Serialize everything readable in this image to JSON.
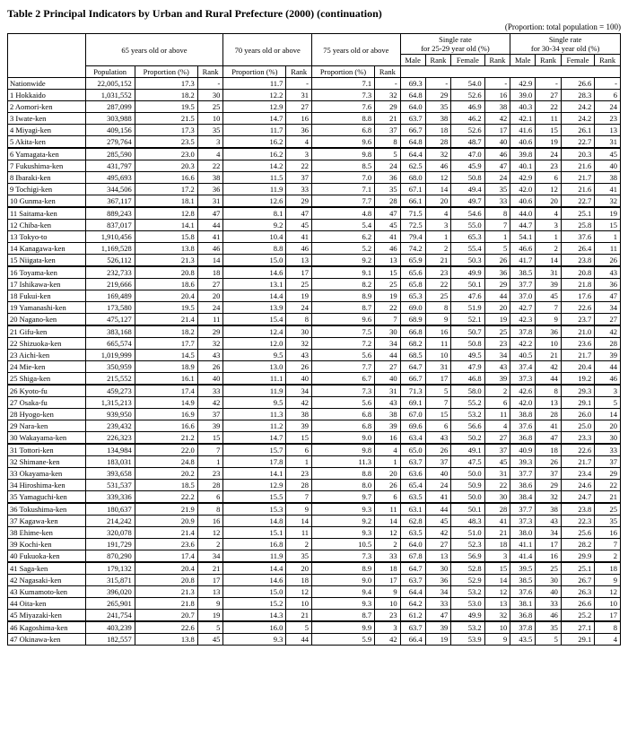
{
  "title": "Table 2  Principal Indicators by Urban and Rural Prefecture (2000) (continuation)",
  "subtitle": "(Proportion: total population = 100)",
  "header": {
    "g65": "65 years old or above",
    "g70": "70 years old or above",
    "g75": "75 years old or above",
    "sr25": "Single rate\nfor 25-29 year old (%)",
    "sr30": "Single rate\nfor 30-34 year old (%)",
    "pop": "Population",
    "prop": "Proportion (%)",
    "rank": "Rank",
    "male": "Male",
    "female": "Female"
  },
  "nationwide_label": "Nationwide",
  "nationwide": {
    "pop": "22,005,152",
    "p65": "17.3",
    "r65": "-",
    "p70": "11.7",
    "r70": "-",
    "p75": "7.1",
    "r75": "-",
    "m25": "69.3",
    "m25r": "-",
    "f25": "54.0",
    "f25r": "-",
    "m30": "42.9",
    "m30r": "-",
    "f30": "26.6",
    "f30r": "-"
  },
  "rows": [
    {
      "n": "1 Hokkaido",
      "pop": "1,031,552",
      "p65": "18.2",
      "r65": "30",
      "p70": "12.2",
      "r70": "31",
      "p75": "7.3",
      "r75": "32",
      "m25": "64.8",
      "m25r": "29",
      "f25": "52.6",
      "f25r": "16",
      "m30": "39.0",
      "m30r": "27",
      "f30": "28.3",
      "f30r": "6"
    },
    {
      "n": "2 Aomori-ken",
      "pop": "287,099",
      "p65": "19.5",
      "r65": "25",
      "p70": "12.9",
      "r70": "27",
      "p75": "7.6",
      "r75": "29",
      "m25": "64.0",
      "m25r": "35",
      "f25": "46.9",
      "f25r": "38",
      "m30": "40.3",
      "m30r": "22",
      "f30": "24.2",
      "f30r": "24"
    },
    {
      "n": "3 Iwate-ken",
      "pop": "303,988",
      "p65": "21.5",
      "r65": "10",
      "p70": "14.7",
      "r70": "16",
      "p75": "8.8",
      "r75": "21",
      "m25": "63.7",
      "m25r": "38",
      "f25": "46.2",
      "f25r": "42",
      "m30": "42.1",
      "m30r": "11",
      "f30": "24.2",
      "f30r": "23"
    },
    {
      "n": "4 Miyagi-ken",
      "pop": "409,156",
      "p65": "17.3",
      "r65": "35",
      "p70": "11.7",
      "r70": "36",
      "p75": "6.8",
      "r75": "37",
      "m25": "66.7",
      "m25r": "18",
      "f25": "52.6",
      "f25r": "17",
      "m30": "41.6",
      "m30r": "15",
      "f30": "26.1",
      "f30r": "13"
    },
    {
      "n": "5 Akita-ken",
      "pop": "279,764",
      "p65": "23.5",
      "r65": "3",
      "p70": "16.2",
      "r70": "4",
      "p75": "9.6",
      "r75": "8",
      "m25": "64.8",
      "m25r": "28",
      "f25": "48.7",
      "f25r": "40",
      "m30": "40.6",
      "m30r": "19",
      "f30": "22.7",
      "f30r": "31"
    },
    {
      "n": "6 Yamagata-ken",
      "pop": "285,590",
      "p65": "23.0",
      "r65": "4",
      "p70": "16.2",
      "r70": "3",
      "p75": "9.8",
      "r75": "5",
      "m25": "64.4",
      "m25r": "32",
      "f25": "47.0",
      "f25r": "46",
      "m30": "39.8",
      "m30r": "24",
      "f30": "20.3",
      "f30r": "45",
      "sec": true
    },
    {
      "n": "7 Fukushima-ken",
      "pop": "431,797",
      "p65": "20.3",
      "r65": "22",
      "p70": "14.2",
      "r70": "22",
      "p75": "8.5",
      "r75": "24",
      "m25": "62.5",
      "m25r": "46",
      "f25": "45.9",
      "f25r": "47",
      "m30": "40.1",
      "m30r": "23",
      "f30": "21.6",
      "f30r": "40"
    },
    {
      "n": "8 Ibaraki-ken",
      "pop": "495,693",
      "p65": "16.6",
      "r65": "38",
      "p70": "11.5",
      "r70": "37",
      "p75": "7.0",
      "r75": "36",
      "m25": "68.0",
      "m25r": "12",
      "f25": "50.8",
      "f25r": "24",
      "m30": "42.9",
      "m30r": "6",
      "f30": "21.7",
      "f30r": "38"
    },
    {
      "n": "9 Tochigi-ken",
      "pop": "344,506",
      "p65": "17.2",
      "r65": "36",
      "p70": "11.9",
      "r70": "33",
      "p75": "7.1",
      "r75": "35",
      "m25": "67.1",
      "m25r": "14",
      "f25": "49.4",
      "f25r": "35",
      "m30": "42.0",
      "m30r": "12",
      "f30": "21.6",
      "f30r": "41"
    },
    {
      "n": "10 Gunma-ken",
      "pop": "367,117",
      "p65": "18.1",
      "r65": "31",
      "p70": "12.6",
      "r70": "29",
      "p75": "7.7",
      "r75": "28",
      "m25": "66.1",
      "m25r": "20",
      "f25": "49.7",
      "f25r": "33",
      "m30": "40.6",
      "m30r": "20",
      "f30": "22.7",
      "f30r": "32"
    },
    {
      "n": "11 Saitama-ken",
      "pop": "889,243",
      "p65": "12.8",
      "r65": "47",
      "p70": "8.1",
      "r70": "47",
      "p75": "4.8",
      "r75": "47",
      "m25": "71.5",
      "m25r": "4",
      "f25": "54.6",
      "f25r": "8",
      "m30": "44.0",
      "m30r": "4",
      "f30": "25.1",
      "f30r": "19",
      "sec": true
    },
    {
      "n": "12 Chiba-ken",
      "pop": "837,017",
      "p65": "14.1",
      "r65": "44",
      "p70": "9.2",
      "r70": "45",
      "p75": "5.4",
      "r75": "45",
      "m25": "72.5",
      "m25r": "3",
      "f25": "55.0",
      "f25r": "7",
      "m30": "44.7",
      "m30r": "3",
      "f30": "25.8",
      "f30r": "15"
    },
    {
      "n": "13 Tokyo-to",
      "pop": "1,910,456",
      "p65": "15.8",
      "r65": "41",
      "p70": "10.4",
      "r70": "41",
      "p75": "6.2",
      "r75": "41",
      "m25": "79.4",
      "m25r": "1",
      "f25": "65.3",
      "f25r": "1",
      "m30": "54.1",
      "m30r": "1",
      "f30": "37.6",
      "f30r": "1"
    },
    {
      "n": "14 Kanagawa-ken",
      "pop": "1,169,528",
      "p65": "13.8",
      "r65": "46",
      "p70": "8.8",
      "r70": "46",
      "p75": "5.2",
      "r75": "46",
      "m25": "74.2",
      "m25r": "2",
      "f25": "55.4",
      "f25r": "5",
      "m30": "46.6",
      "m30r": "2",
      "f30": "26.4",
      "f30r": "11"
    },
    {
      "n": "15 Niigata-ken",
      "pop": "526,112",
      "p65": "21.3",
      "r65": "14",
      "p70": "15.0",
      "r70": "13",
      "p75": "9.2",
      "r75": "13",
      "m25": "65.9",
      "m25r": "21",
      "f25": "50.3",
      "f25r": "26",
      "m30": "41.7",
      "m30r": "14",
      "f30": "23.8",
      "f30r": "26"
    },
    {
      "n": "16 Toyama-ken",
      "pop": "232,733",
      "p65": "20.8",
      "r65": "18",
      "p70": "14.6",
      "r70": "17",
      "p75": "9.1",
      "r75": "15",
      "m25": "65.6",
      "m25r": "23",
      "f25": "49.9",
      "f25r": "36",
      "m30": "38.5",
      "m30r": "31",
      "f30": "20.8",
      "f30r": "43",
      "sec": true
    },
    {
      "n": "17 Ishikawa-ken",
      "pop": "219,666",
      "p65": "18.6",
      "r65": "27",
      "p70": "13.1",
      "r70": "25",
      "p75": "8.2",
      "r75": "25",
      "m25": "65.8",
      "m25r": "22",
      "f25": "50.1",
      "f25r": "29",
      "m30": "37.7",
      "m30r": "39",
      "f30": "21.8",
      "f30r": "36"
    },
    {
      "n": "18 Fukui-ken",
      "pop": "169,489",
      "p65": "20.4",
      "r65": "20",
      "p70": "14.4",
      "r70": "19",
      "p75": "8.9",
      "r75": "19",
      "m25": "65.3",
      "m25r": "25",
      "f25": "47.6",
      "f25r": "44",
      "m30": "37.0",
      "m30r": "45",
      "f30": "17.6",
      "f30r": "47"
    },
    {
      "n": "19 Yamanashi-ken",
      "pop": "173,580",
      "p65": "19.5",
      "r65": "24",
      "p70": "13.9",
      "r70": "24",
      "p75": "8.7",
      "r75": "22",
      "m25": "69.0",
      "m25r": "8",
      "f25": "51.9",
      "f25r": "20",
      "m30": "42.7",
      "m30r": "7",
      "f30": "22.6",
      "f30r": "34"
    },
    {
      "n": "20 Nagano-ken",
      "pop": "475,127",
      "p65": "21.4",
      "r65": "11",
      "p70": "15.4",
      "r70": "8",
      "p75": "9.6",
      "r75": "7",
      "m25": "68.9",
      "m25r": "9",
      "f25": "52.1",
      "f25r": "19",
      "m30": "42.3",
      "m30r": "9",
      "f30": "23.7",
      "f30r": "27"
    },
    {
      "n": "21 Gifu-ken",
      "pop": "383,168",
      "p65": "18.2",
      "r65": "29",
      "p70": "12.4",
      "r70": "30",
      "p75": "7.5",
      "r75": "30",
      "m25": "66.8",
      "m25r": "16",
      "f25": "50.7",
      "f25r": "25",
      "m30": "37.8",
      "m30r": "36",
      "f30": "21.0",
      "f30r": "42",
      "sec": true
    },
    {
      "n": "22 Shizuoka-ken",
      "pop": "665,574",
      "p65": "17.7",
      "r65": "32",
      "p70": "12.0",
      "r70": "32",
      "p75": "7.2",
      "r75": "34",
      "m25": "68.2",
      "m25r": "11",
      "f25": "50.8",
      "f25r": "23",
      "m30": "42.2",
      "m30r": "10",
      "f30": "23.6",
      "f30r": "28"
    },
    {
      "n": "23 Aichi-ken",
      "pop": "1,019,999",
      "p65": "14.5",
      "r65": "43",
      "p70": "9.5",
      "r70": "43",
      "p75": "5.6",
      "r75": "44",
      "m25": "68.5",
      "m25r": "10",
      "f25": "49.5",
      "f25r": "34",
      "m30": "40.5",
      "m30r": "21",
      "f30": "21.7",
      "f30r": "39"
    },
    {
      "n": "24 Mie-ken",
      "pop": "350,959",
      "p65": "18.9",
      "r65": "26",
      "p70": "13.0",
      "r70": "26",
      "p75": "7.7",
      "r75": "27",
      "m25": "64.7",
      "m25r": "31",
      "f25": "47.9",
      "f25r": "43",
      "m30": "37.4",
      "m30r": "42",
      "f30": "20.4",
      "f30r": "44"
    },
    {
      "n": "25 Shiga-ken",
      "pop": "215,552",
      "p65": "16.1",
      "r65": "40",
      "p70": "11.1",
      "r70": "40",
      "p75": "6.7",
      "r75": "40",
      "m25": "66.7",
      "m25r": "17",
      "f25": "46.8",
      "f25r": "39",
      "m30": "37.3",
      "m30r": "44",
      "f30": "19.2",
      "f30r": "46"
    },
    {
      "n": "26 Kyoto-fu",
      "pop": "459,273",
      "p65": "17.4",
      "r65": "33",
      "p70": "11.9",
      "r70": "34",
      "p75": "7.3",
      "r75": "31",
      "m25": "71.3",
      "m25r": "5",
      "f25": "58.0",
      "f25r": "2",
      "m30": "42.6",
      "m30r": "8",
      "f30": "29.3",
      "f30r": "3",
      "sec": true
    },
    {
      "n": "27 Osaka-fu",
      "pop": "1,315,213",
      "p65": "14.9",
      "r65": "42",
      "p70": "9.5",
      "r70": "42",
      "p75": "5.6",
      "r75": "43",
      "m25": "69.1",
      "m25r": "7",
      "f25": "55.2",
      "f25r": "6",
      "m30": "42.0",
      "m30r": "13",
      "f30": "29.1",
      "f30r": "5"
    },
    {
      "n": "28 Hyogo-ken",
      "pop": "939,950",
      "p65": "16.9",
      "r65": "37",
      "p70": "11.3",
      "r70": "38",
      "p75": "6.8",
      "r75": "38",
      "m25": "67.0",
      "m25r": "15",
      "f25": "53.2",
      "f25r": "11",
      "m30": "38.8",
      "m30r": "28",
      "f30": "26.0",
      "f30r": "14"
    },
    {
      "n": "29 Nara-ken",
      "pop": "239,432",
      "p65": "16.6",
      "r65": "39",
      "p70": "11.2",
      "r70": "39",
      "p75": "6.8",
      "r75": "39",
      "m25": "69.6",
      "m25r": "6",
      "f25": "56.6",
      "f25r": "4",
      "m30": "37.6",
      "m30r": "41",
      "f30": "25.0",
      "f30r": "20"
    },
    {
      "n": "30 Wakayama-ken",
      "pop": "226,323",
      "p65": "21.2",
      "r65": "15",
      "p70": "14.7",
      "r70": "15",
      "p75": "9.0",
      "r75": "16",
      "m25": "63.4",
      "m25r": "43",
      "f25": "50.2",
      "f25r": "27",
      "m30": "36.8",
      "m30r": "47",
      "f30": "23.3",
      "f30r": "30"
    },
    {
      "n": "31 Tottori-ken",
      "pop": "134,984",
      "p65": "22.0",
      "r65": "7",
      "p70": "15.7",
      "r70": "6",
      "p75": "9.8",
      "r75": "4",
      "m25": "65.0",
      "m25r": "26",
      "f25": "49.1",
      "f25r": "37",
      "m30": "40.9",
      "m30r": "18",
      "f30": "22.6",
      "f30r": "33",
      "sec": true
    },
    {
      "n": "32 Shimane-ken",
      "pop": "183,031",
      "p65": "24.8",
      "r65": "1",
      "p70": "17.8",
      "r70": "1",
      "p75": "11.3",
      "r75": "1",
      "m25": "63.7",
      "m25r": "37",
      "f25": "47.5",
      "f25r": "45",
      "m30": "39.3",
      "m30r": "26",
      "f30": "21.7",
      "f30r": "37"
    },
    {
      "n": "33 Okayama-ken",
      "pop": "393,658",
      "p65": "20.2",
      "r65": "23",
      "p70": "14.1",
      "r70": "23",
      "p75": "8.8",
      "r75": "20",
      "m25": "63.6",
      "m25r": "40",
      "f25": "50.0",
      "f25r": "31",
      "m30": "37.7",
      "m30r": "37",
      "f30": "23.4",
      "f30r": "29"
    },
    {
      "n": "34 Hiroshima-ken",
      "pop": "531,537",
      "p65": "18.5",
      "r65": "28",
      "p70": "12.9",
      "r70": "28",
      "p75": "8.0",
      "r75": "26",
      "m25": "65.4",
      "m25r": "24",
      "f25": "50.9",
      "f25r": "22",
      "m30": "38.6",
      "m30r": "29",
      "f30": "24.6",
      "f30r": "22"
    },
    {
      "n": "35 Yamaguchi-ken",
      "pop": "339,336",
      "p65": "22.2",
      "r65": "6",
      "p70": "15.5",
      "r70": "7",
      "p75": "9.7",
      "r75": "6",
      "m25": "63.5",
      "m25r": "41",
      "f25": "50.0",
      "f25r": "30",
      "m30": "38.4",
      "m30r": "32",
      "f30": "24.7",
      "f30r": "21"
    },
    {
      "n": "36 Tokushima-ken",
      "pop": "180,637",
      "p65": "21.9",
      "r65": "8",
      "p70": "15.3",
      "r70": "9",
      "p75": "9.3",
      "r75": "11",
      "m25": "63.1",
      "m25r": "44",
      "f25": "50.1",
      "f25r": "28",
      "m30": "37.7",
      "m30r": "38",
      "f30": "23.8",
      "f30r": "25",
      "sec": true
    },
    {
      "n": "37 Kagawa-ken",
      "pop": "214,242",
      "p65": "20.9",
      "r65": "16",
      "p70": "14.8",
      "r70": "14",
      "p75": "9.2",
      "r75": "14",
      "m25": "62.8",
      "m25r": "45",
      "f25": "48.3",
      "f25r": "41",
      "m30": "37.3",
      "m30r": "43",
      "f30": "22.3",
      "f30r": "35"
    },
    {
      "n": "38 Ehime-ken",
      "pop": "320,078",
      "p65": "21.4",
      "r65": "12",
      "p70": "15.1",
      "r70": "11",
      "p75": "9.3",
      "r75": "12",
      "m25": "63.5",
      "m25r": "42",
      "f25": "51.0",
      "f25r": "21",
      "m30": "38.0",
      "m30r": "34",
      "f30": "25.6",
      "f30r": "16"
    },
    {
      "n": "39 Kochi-ken",
      "pop": "191,729",
      "p65": "23.6",
      "r65": "2",
      "p70": "16.8",
      "r70": "2",
      "p75": "10.5",
      "r75": "2",
      "m25": "64.0",
      "m25r": "27",
      "f25": "52.3",
      "f25r": "18",
      "m30": "41.1",
      "m30r": "17",
      "f30": "28.2",
      "f30r": "7"
    },
    {
      "n": "40 Fukuoka-ken",
      "pop": "870,290",
      "p65": "17.4",
      "r65": "34",
      "p70": "11.9",
      "r70": "35",
      "p75": "7.3",
      "r75": "33",
      "m25": "67.8",
      "m25r": "13",
      "f25": "56.9",
      "f25r": "3",
      "m30": "41.4",
      "m30r": "16",
      "f30": "29.9",
      "f30r": "2"
    },
    {
      "n": "41 Saga-ken",
      "pop": "179,132",
      "p65": "20.4",
      "r65": "21",
      "p70": "14.4",
      "r70": "20",
      "p75": "8.9",
      "r75": "18",
      "m25": "64.7",
      "m25r": "30",
      "f25": "52.8",
      "f25r": "15",
      "m30": "39.5",
      "m30r": "25",
      "f30": "25.1",
      "f30r": "18",
      "sec": true
    },
    {
      "n": "42 Nagasaki-ken",
      "pop": "315,871",
      "p65": "20.8",
      "r65": "17",
      "p70": "14.6",
      "r70": "18",
      "p75": "9.0",
      "r75": "17",
      "m25": "63.7",
      "m25r": "36",
      "f25": "52.9",
      "f25r": "14",
      "m30": "38.5",
      "m30r": "30",
      "f30": "26.7",
      "f30r": "9"
    },
    {
      "n": "43 Kumamoto-ken",
      "pop": "396,020",
      "p65": "21.3",
      "r65": "13",
      "p70": "15.0",
      "r70": "12",
      "p75": "9.4",
      "r75": "9",
      "m25": "64.4",
      "m25r": "34",
      "f25": "53.2",
      "f25r": "12",
      "m30": "37.6",
      "m30r": "40",
      "f30": "26.3",
      "f30r": "12"
    },
    {
      "n": "44 Oita-ken",
      "pop": "265,901",
      "p65": "21.8",
      "r65": "9",
      "p70": "15.2",
      "r70": "10",
      "p75": "9.3",
      "r75": "10",
      "m25": "64.2",
      "m25r": "33",
      "f25": "53.0",
      "f25r": "13",
      "m30": "38.1",
      "m30r": "33",
      "f30": "26.6",
      "f30r": "10"
    },
    {
      "n": "45 Miyazaki-ken",
      "pop": "241,754",
      "p65": "20.7",
      "r65": "19",
      "p70": "14.3",
      "r70": "21",
      "p75": "8.7",
      "r75": "23",
      "m25": "61.2",
      "m25r": "47",
      "f25": "49.9",
      "f25r": "32",
      "m30": "36.8",
      "m30r": "46",
      "f30": "25.2",
      "f30r": "17"
    },
    {
      "n": "46 Kagoshima-ken",
      "pop": "403,239",
      "p65": "22.6",
      "r65": "5",
      "p70": "16.0",
      "r70": "5",
      "p75": "9.9",
      "r75": "3",
      "m25": "63.7",
      "m25r": "39",
      "f25": "53.2",
      "f25r": "10",
      "m30": "37.8",
      "m30r": "35",
      "f30": "27.1",
      "f30r": "8",
      "sec": true
    },
    {
      "n": "47 Okinawa-ken",
      "pop": "182,557",
      "p65": "13.8",
      "r65": "45",
      "p70": "9.3",
      "r70": "44",
      "p75": "5.9",
      "r75": "42",
      "m25": "66.4",
      "m25r": "19",
      "f25": "53.9",
      "f25r": "9",
      "m30": "43.5",
      "m30r": "5",
      "f30": "29.1",
      "f30r": "4"
    }
  ]
}
